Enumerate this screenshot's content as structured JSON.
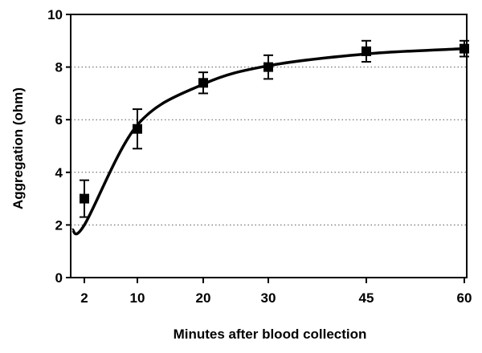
{
  "chart_data": {
    "type": "scatter",
    "title": "",
    "xlabel": "Minutes after blood collection",
    "ylabel": "Aggregation (ohm)",
    "x_tick_labels": [
      "2",
      "10",
      "20",
      "30",
      "45",
      "60"
    ],
    "y_tick_labels": [
      "0",
      "2",
      "4",
      "6",
      "8",
      "10"
    ],
    "y_ticks": [
      0,
      2,
      4,
      6,
      8,
      10
    ],
    "ylim": [
      0,
      10
    ],
    "grid": "horizontal dotted lines at 2, 4, 6, 8",
    "legend": "none",
    "series": [
      {
        "x": [
          "2",
          "10",
          "20",
          "30",
          "45",
          "60"
        ],
        "y": [
          3.0,
          5.65,
          7.4,
          8.0,
          8.6,
          8.7
        ],
        "error": [
          0.7,
          0.75,
          0.4,
          0.45,
          0.4,
          0.3
        ],
        "marker": "square"
      }
    ],
    "fit_curve": {
      "x": [
        "2",
        "10",
        "20",
        "30",
        "45",
        "60"
      ],
      "y": [
        2.0,
        5.8,
        7.35,
        8.05,
        8.5,
        8.7
      ],
      "style": "solid"
    },
    "colors": {
      "line": "#000000",
      "grid": "#555555",
      "background": "#ffffff"
    }
  }
}
